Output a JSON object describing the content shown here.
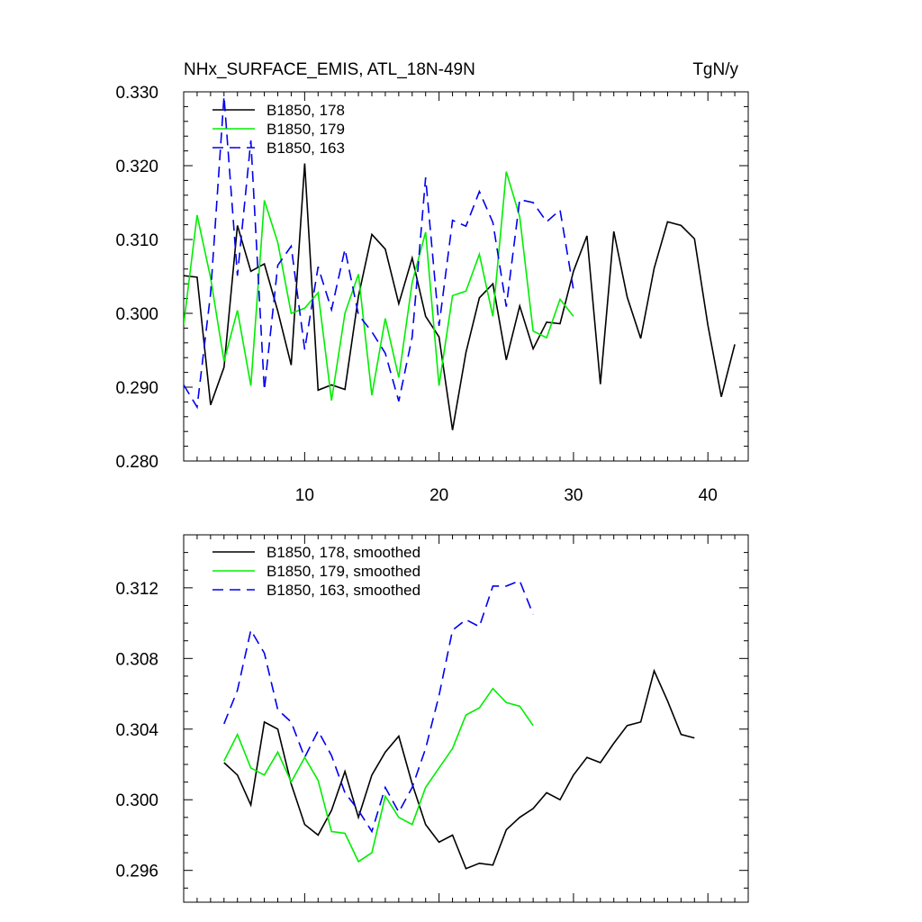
{
  "page": {
    "title_left": "NHx_SURFACE_EMIS, ATL_18N-49N",
    "title_right": "TgN/y"
  },
  "chart_data": [
    {
      "type": "line",
      "title": "NHx_SURFACE_EMIS, ATL_18N-49N",
      "units": "TgN/y",
      "xlim": [
        1,
        43
      ],
      "ylim": [
        0.28,
        0.33
      ],
      "x_ticks": [
        10,
        20,
        30,
        40
      ],
      "x_tick_labels": [
        "10",
        "20",
        "30",
        "40"
      ],
      "y_ticks": [
        0.28,
        0.29,
        0.3,
        0.31,
        0.32,
        0.33
      ],
      "y_tick_labels": [
        "0.280",
        "0.290",
        "0.300",
        "0.310",
        "0.320",
        "0.330"
      ],
      "legend_position": "top-left",
      "grid": false,
      "series": [
        {
          "name": "B1850, 178",
          "color": "#000000",
          "dash": "solid",
          "x": [
            1,
            2,
            3,
            4,
            5,
            6,
            7,
            8,
            9,
            10,
            11,
            12,
            13,
            14,
            15,
            16,
            17,
            18,
            19,
            20,
            21,
            22,
            23,
            24,
            25,
            26,
            27,
            28,
            29,
            30,
            31,
            32,
            33,
            34,
            35,
            36,
            37,
            38,
            39,
            40,
            41,
            42
          ],
          "values": [
            0.3051,
            0.3049,
            0.2876,
            0.2927,
            0.3119,
            0.3057,
            0.3067,
            0.3003,
            0.293,
            0.3203,
            0.2896,
            0.2903,
            0.2897,
            0.3023,
            0.3107,
            0.3087,
            0.3013,
            0.3075,
            0.2996,
            0.2968,
            0.2842,
            0.2947,
            0.3021,
            0.304,
            0.2937,
            0.301,
            0.2952,
            0.2988,
            0.2986,
            0.3057,
            0.3105,
            0.2904,
            0.3111,
            0.3022,
            0.2966,
            0.3061,
            0.3124,
            0.3119,
            0.3101,
            0.2984,
            0.2887,
            0.2958
          ]
        },
        {
          "name": "B1850, 179",
          "color": "#00ee00",
          "dash": "solid",
          "x": [
            1,
            2,
            3,
            4,
            5,
            6,
            7,
            8,
            9,
            10,
            11,
            12,
            13,
            14,
            15,
            16,
            17,
            18,
            19,
            20,
            21,
            22,
            23,
            24,
            25,
            26,
            27,
            28,
            29,
            30
          ],
          "values": [
            0.2985,
            0.3133,
            0.3048,
            0.2935,
            0.3004,
            0.2902,
            0.3153,
            0.3096,
            0.3,
            0.3007,
            0.3028,
            0.2882,
            0.3,
            0.3053,
            0.2889,
            0.2993,
            0.2913,
            0.3042,
            0.311,
            0.2902,
            0.3024,
            0.303,
            0.308,
            0.2996,
            0.3192,
            0.3131,
            0.2976,
            0.2967,
            0.3019,
            0.2996
          ]
        },
        {
          "name": "B1850, 163",
          "color": "#0000ee",
          "dash": "dashed",
          "x": [
            1,
            2,
            3,
            4,
            5,
            6,
            7,
            8,
            9,
            10,
            11,
            12,
            13,
            14,
            15,
            16,
            17,
            18,
            19,
            20,
            21,
            22,
            23,
            24,
            25,
            26,
            27,
            28,
            29,
            30
          ],
          "values": [
            0.2903,
            0.2873,
            0.3027,
            0.3294,
            0.3051,
            0.3234,
            0.2896,
            0.3065,
            0.3091,
            0.2951,
            0.3063,
            0.3005,
            0.3087,
            0.2998,
            0.2975,
            0.2946,
            0.2881,
            0.2968,
            0.3184,
            0.2983,
            0.3126,
            0.3118,
            0.3165,
            0.3123,
            0.3009,
            0.3154,
            0.315,
            0.3124,
            0.314,
            0.3032
          ]
        }
      ]
    },
    {
      "type": "line",
      "xlim": [
        1,
        43
      ],
      "ylim": [
        0.2942,
        0.315
      ],
      "x_ticks": [
        10,
        20,
        30,
        40
      ],
      "y_ticks": [
        0.296,
        0.3,
        0.304,
        0.308,
        0.312
      ],
      "y_tick_labels": [
        "0.296",
        "0.300",
        "0.304",
        "0.308",
        "0.312"
      ],
      "legend_position": "top-left",
      "grid": false,
      "series": [
        {
          "name": "B1850, 178, smoothed",
          "color": "#000000",
          "dash": "solid",
          "x": [
            4,
            5,
            6,
            7,
            8,
            9,
            10,
            11,
            12,
            13,
            14,
            15,
            16,
            17,
            18,
            19,
            20,
            21,
            22,
            23,
            24,
            25,
            26,
            27,
            28,
            29,
            30,
            31,
            32,
            33,
            34,
            35,
            36,
            37,
            38,
            39
          ],
          "values": [
            0.3021,
            0.3014,
            0.2997,
            0.3044,
            0.304,
            0.3009,
            0.2986,
            0.298,
            0.2994,
            0.3016,
            0.299,
            0.3014,
            0.3027,
            0.3036,
            0.3009,
            0.2986,
            0.2976,
            0.298,
            0.2961,
            0.2964,
            0.2963,
            0.2983,
            0.299,
            0.2995,
            0.3004,
            0.3,
            0.3014,
            0.3024,
            0.3021,
            0.3032,
            0.3042,
            0.3044,
            0.3073,
            0.3056,
            0.3037,
            0.3035
          ]
        },
        {
          "name": "B1850, 179, smoothed",
          "color": "#00ee00",
          "dash": "solid",
          "x": [
            4,
            5,
            6,
            7,
            8,
            9,
            10,
            11,
            12,
            13,
            14,
            15,
            16,
            17,
            18,
            19,
            20,
            21,
            22,
            23,
            24,
            25,
            26,
            27
          ],
          "values": [
            0.3022,
            0.3037,
            0.3018,
            0.3014,
            0.3027,
            0.301,
            0.3024,
            0.3011,
            0.2982,
            0.2981,
            0.2965,
            0.297,
            0.3002,
            0.299,
            0.2986,
            0.3007,
            0.3018,
            0.3029,
            0.3048,
            0.3052,
            0.3063,
            0.3055,
            0.3053,
            0.3042
          ]
        },
        {
          "name": "B1850, 163, smoothed",
          "color": "#0000ee",
          "dash": "dashed",
          "x": [
            4,
            5,
            6,
            7,
            8,
            9,
            10,
            11,
            12,
            13,
            14,
            15,
            16,
            17,
            18,
            19,
            20,
            21,
            22,
            23,
            24,
            25,
            26,
            27
          ],
          "values": [
            0.3043,
            0.3062,
            0.3096,
            0.3083,
            0.3051,
            0.3044,
            0.3024,
            0.3039,
            0.3025,
            0.3004,
            0.2994,
            0.2982,
            0.3007,
            0.2993,
            0.3007,
            0.3029,
            0.3059,
            0.3096,
            0.3102,
            0.3098,
            0.3121,
            0.3121,
            0.3124,
            0.3105
          ]
        }
      ]
    }
  ]
}
